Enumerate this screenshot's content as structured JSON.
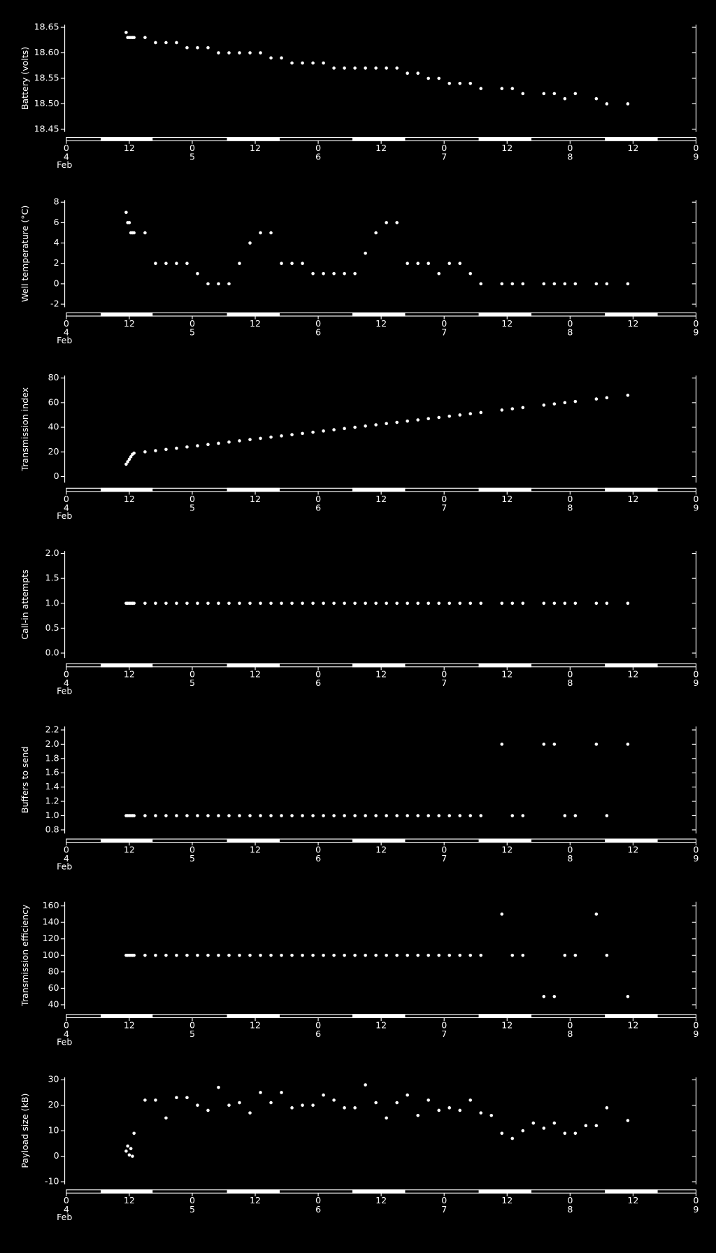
{
  "chart_data": [
    {
      "type": "scatter",
      "y_label": "Battery (volts)",
      "color": "#ffffff",
      "x": [
        11.4,
        11.7,
        12.0,
        12.3,
        12.6,
        12.9,
        15,
        17,
        19,
        21,
        23,
        25,
        27,
        29,
        31,
        33,
        35,
        37,
        39,
        41,
        43,
        45,
        47,
        49,
        51,
        53,
        55,
        57,
        59,
        61,
        63,
        65,
        67,
        69,
        71,
        73,
        75,
        77,
        79,
        83,
        85,
        87,
        91,
        93,
        95,
        97,
        101,
        103,
        107
      ],
      "values": [
        18.64,
        18.63,
        18.63,
        18.63,
        18.63,
        18.63,
        18.63,
        18.62,
        18.62,
        18.62,
        18.61,
        18.61,
        18.61,
        18.6,
        18.6,
        18.6,
        18.6,
        18.6,
        18.59,
        18.59,
        18.58,
        18.58,
        18.58,
        18.58,
        18.57,
        18.57,
        18.57,
        18.57,
        18.57,
        18.57,
        18.57,
        18.56,
        18.56,
        18.55,
        18.55,
        18.54,
        18.54,
        18.54,
        18.53,
        18.53,
        18.53,
        18.52,
        18.52,
        18.52,
        18.51,
        18.52,
        18.51,
        18.5,
        18.5
      ],
      "ylim": [
        18.445,
        18.655
      ],
      "yticks": [
        18.45,
        {
          "value": 18.5,
          "label": "18.50"
        },
        18.55,
        {
          "value": 18.6,
          "label": "18.60"
        },
        18.65
      ],
      "xlim": [
        0,
        120
      ],
      "xticks": [
        0,
        12,
        {
          "value": 24,
          "label": "0"
        },
        {
          "value": 36,
          "label": "12"
        },
        {
          "value": 48,
          "label": "0"
        },
        {
          "value": 60,
          "label": "12"
        },
        {
          "value": 72,
          "label": "0"
        },
        {
          "value": 84,
          "label": "12"
        },
        {
          "value": 96,
          "label": "0"
        },
        {
          "value": 108,
          "label": "12"
        },
        {
          "value": 120,
          "label": "0"
        }
      ],
      "day_labels": [
        {
          "value": 0,
          "label": "4"
        },
        {
          "value": 24,
          "label": "5"
        },
        {
          "value": 48,
          "label": "6"
        },
        {
          "value": 72,
          "label": "7"
        },
        {
          "value": 96,
          "label": "8"
        },
        {
          "value": 120,
          "label": "9"
        }
      ],
      "month_label": "Feb"
    },
    {
      "type": "scatter",
      "y_label": "Well temperature (°C)",
      "color": "#ffffff",
      "x": [
        11.4,
        11.7,
        12.0,
        12.3,
        12.6,
        12.9,
        15,
        17,
        19,
        21,
        23,
        25,
        27,
        29,
        31,
        33,
        35,
        37,
        39,
        41,
        43,
        45,
        47,
        49,
        51,
        53,
        55,
        57,
        59,
        61,
        63,
        65,
        67,
        69,
        71,
        73,
        75,
        77,
        79,
        83,
        85,
        87,
        91,
        93,
        95,
        97,
        101,
        103,
        107
      ],
      "values": [
        7,
        6,
        6,
        5,
        5,
        5,
        5,
        2,
        2,
        2,
        2,
        1,
        0,
        0,
        0,
        2,
        4,
        5,
        5,
        2,
        2,
        2,
        1,
        1,
        1,
        1,
        1,
        3,
        5,
        6,
        6,
        2,
        2,
        2,
        1,
        2,
        2,
        1,
        0,
        0,
        0,
        0,
        0,
        0,
        0,
        0,
        0,
        0,
        0
      ],
      "ylim": [
        -2.3,
        8.2
      ],
      "yticks": [
        -2,
        0,
        2,
        4,
        6,
        8
      ],
      "xlim": [
        0,
        120
      ],
      "xticks": [
        0,
        12,
        {
          "value": 24,
          "label": "0"
        },
        {
          "value": 36,
          "label": "12"
        },
        {
          "value": 48,
          "label": "0"
        },
        {
          "value": 60,
          "label": "12"
        },
        {
          "value": 72,
          "label": "0"
        },
        {
          "value": 84,
          "label": "12"
        },
        {
          "value": 96,
          "label": "0"
        },
        {
          "value": 108,
          "label": "12"
        },
        {
          "value": 120,
          "label": "0"
        }
      ],
      "day_labels": [
        {
          "value": 0,
          "label": "4"
        },
        {
          "value": 24,
          "label": "5"
        },
        {
          "value": 48,
          "label": "6"
        },
        {
          "value": 72,
          "label": "7"
        },
        {
          "value": 96,
          "label": "8"
        },
        {
          "value": 120,
          "label": "9"
        }
      ],
      "month_label": "Feb"
    },
    {
      "type": "scatter",
      "y_label": "Transmission index",
      "color": "#ffffff",
      "x": [
        11.4,
        11.7,
        12.0,
        12.3,
        12.6,
        12.9,
        15,
        17,
        19,
        21,
        23,
        25,
        27,
        29,
        31,
        33,
        35,
        37,
        39,
        41,
        43,
        45,
        47,
        49,
        51,
        53,
        55,
        57,
        59,
        61,
        63,
        65,
        67,
        69,
        71,
        73,
        75,
        77,
        79,
        83,
        85,
        87,
        91,
        93,
        95,
        97,
        101,
        103,
        107
      ],
      "values": [
        10,
        12,
        14,
        16,
        18,
        19,
        20,
        21,
        22,
        23,
        24,
        25,
        26,
        27,
        28,
        29,
        30,
        31,
        32,
        33,
        34,
        35,
        36,
        37,
        38,
        39,
        40,
        41,
        42,
        43,
        44,
        45,
        46,
        47,
        48,
        49,
        50,
        51,
        52,
        54,
        55,
        56,
        58,
        59,
        60,
        61,
        63,
        64,
        66
      ],
      "ylim": [
        -5,
        82
      ],
      "yticks": [
        0,
        20,
        40,
        60,
        80
      ],
      "xlim": [
        0,
        120
      ],
      "xticks": [
        0,
        12,
        {
          "value": 24,
          "label": "0"
        },
        {
          "value": 36,
          "label": "12"
        },
        {
          "value": 48,
          "label": "0"
        },
        {
          "value": 60,
          "label": "12"
        },
        {
          "value": 72,
          "label": "0"
        },
        {
          "value": 84,
          "label": "12"
        },
        {
          "value": 96,
          "label": "0"
        },
        {
          "value": 108,
          "label": "12"
        },
        {
          "value": 120,
          "label": "0"
        }
      ],
      "day_labels": [
        {
          "value": 0,
          "label": "4"
        },
        {
          "value": 24,
          "label": "5"
        },
        {
          "value": 48,
          "label": "6"
        },
        {
          "value": 72,
          "label": "7"
        },
        {
          "value": 96,
          "label": "8"
        },
        {
          "value": 120,
          "label": "9"
        }
      ],
      "month_label": "Feb"
    },
    {
      "type": "scatter",
      "y_label": "Call-in attempts",
      "color": "#ffffff",
      "x": [
        11.4,
        11.7,
        12.0,
        12.3,
        12.6,
        12.9,
        15,
        17,
        19,
        21,
        23,
        25,
        27,
        29,
        31,
        33,
        35,
        37,
        39,
        41,
        43,
        45,
        47,
        49,
        51,
        53,
        55,
        57,
        59,
        61,
        63,
        65,
        67,
        69,
        71,
        73,
        75,
        77,
        79,
        83,
        85,
        87,
        91,
        93,
        95,
        97,
        101,
        103,
        107
      ],
      "values": [
        1,
        1,
        1,
        1,
        1,
        1,
        1,
        1,
        1,
        1,
        1,
        1,
        1,
        1,
        1,
        1,
        1,
        1,
        1,
        1,
        1,
        1,
        1,
        1,
        1,
        1,
        1,
        1,
        1,
        1,
        1,
        1,
        1,
        1,
        1,
        1,
        1,
        1,
        1,
        1,
        1,
        1,
        1,
        1,
        1,
        1,
        1,
        1,
        1
      ],
      "ylim": [
        -0.1,
        2.05
      ],
      "yticks": [
        {
          "value": 0,
          "label": "0.0"
        },
        0.5,
        {
          "value": 1,
          "label": "1.0"
        },
        1.5,
        {
          "value": 2,
          "label": "2.0"
        }
      ],
      "xlim": [
        0,
        120
      ],
      "xticks": [
        0,
        12,
        {
          "value": 24,
          "label": "0"
        },
        {
          "value": 36,
          "label": "12"
        },
        {
          "value": 48,
          "label": "0"
        },
        {
          "value": 60,
          "label": "12"
        },
        {
          "value": 72,
          "label": "0"
        },
        {
          "value": 84,
          "label": "12"
        },
        {
          "value": 96,
          "label": "0"
        },
        {
          "value": 108,
          "label": "12"
        },
        {
          "value": 120,
          "label": "0"
        }
      ],
      "day_labels": [
        {
          "value": 0,
          "label": "4"
        },
        {
          "value": 24,
          "label": "5"
        },
        {
          "value": 48,
          "label": "6"
        },
        {
          "value": 72,
          "label": "7"
        },
        {
          "value": 96,
          "label": "8"
        },
        {
          "value": 120,
          "label": "9"
        }
      ],
      "month_label": "Feb"
    },
    {
      "type": "scatter",
      "y_label": "Buffers to send",
      "color": "#ffffff",
      "x": [
        11.4,
        11.7,
        12.0,
        12.3,
        12.6,
        12.9,
        15,
        17,
        19,
        21,
        23,
        25,
        27,
        29,
        31,
        33,
        35,
        37,
        39,
        41,
        43,
        45,
        47,
        49,
        51,
        53,
        55,
        57,
        59,
        61,
        63,
        65,
        67,
        69,
        71,
        73,
        75,
        77,
        79,
        83,
        85,
        87,
        91,
        93,
        95,
        97,
        101,
        103,
        107
      ],
      "values": [
        1,
        1,
        1,
        1,
        1,
        1,
        1,
        1,
        1,
        1,
        1,
        1,
        1,
        1,
        1,
        1,
        1,
        1,
        1,
        1,
        1,
        1,
        1,
        1,
        1,
        1,
        1,
        1,
        1,
        1,
        1,
        1,
        1,
        1,
        1,
        1,
        1,
        1,
        1,
        2,
        1,
        1,
        2,
        2,
        1,
        1,
        2,
        1,
        2
      ],
      "ylim": [
        0.75,
        2.25
      ],
      "yticks": [
        0.8,
        {
          "value": 1,
          "label": "1.0"
        },
        1.2,
        1.4,
        1.6,
        1.8,
        {
          "value": 2,
          "label": "2.0"
        },
        2.2
      ],
      "xlim": [
        0,
        120
      ],
      "xticks": [
        0,
        12,
        {
          "value": 24,
          "label": "0"
        },
        {
          "value": 36,
          "label": "12"
        },
        {
          "value": 48,
          "label": "0"
        },
        {
          "value": 60,
          "label": "12"
        },
        {
          "value": 72,
          "label": "0"
        },
        {
          "value": 84,
          "label": "12"
        },
        {
          "value": 96,
          "label": "0"
        },
        {
          "value": 108,
          "label": "12"
        },
        {
          "value": 120,
          "label": "0"
        }
      ],
      "day_labels": [
        {
          "value": 0,
          "label": "4"
        },
        {
          "value": 24,
          "label": "5"
        },
        {
          "value": 48,
          "label": "6"
        },
        {
          "value": 72,
          "label": "7"
        },
        {
          "value": 96,
          "label": "8"
        },
        {
          "value": 120,
          "label": "9"
        }
      ],
      "month_label": "Feb"
    },
    {
      "type": "scatter",
      "y_label": "Transmission efficiency",
      "color": "#ffffff",
      "x": [
        11.4,
        11.7,
        12.0,
        12.3,
        12.6,
        12.9,
        15,
        17,
        19,
        21,
        23,
        25,
        27,
        29,
        31,
        33,
        35,
        37,
        39,
        41,
        43,
        45,
        47,
        49,
        51,
        53,
        55,
        57,
        59,
        61,
        63,
        65,
        67,
        69,
        71,
        73,
        75,
        77,
        79,
        83,
        85,
        87,
        91,
        93,
        95,
        97,
        101,
        103,
        107
      ],
      "values": [
        100,
        100,
        100,
        100,
        100,
        100,
        100,
        100,
        100,
        100,
        100,
        100,
        100,
        100,
        100,
        100,
        100,
        100,
        100,
        100,
        100,
        100,
        100,
        100,
        100,
        100,
        100,
        100,
        100,
        100,
        100,
        100,
        100,
        100,
        100,
        100,
        100,
        100,
        100,
        150,
        100,
        100,
        50,
        50,
        100,
        100,
        150,
        100,
        50
      ],
      "ylim": [
        35,
        165
      ],
      "yticks": [
        40,
        60,
        80,
        100,
        120,
        140,
        160
      ],
      "xlim": [
        0,
        120
      ],
      "xticks": [
        0,
        12,
        {
          "value": 24,
          "label": "0"
        },
        {
          "value": 36,
          "label": "12"
        },
        {
          "value": 48,
          "label": "0"
        },
        {
          "value": 60,
          "label": "12"
        },
        {
          "value": 72,
          "label": "0"
        },
        {
          "value": 84,
          "label": "12"
        },
        {
          "value": 96,
          "label": "0"
        },
        {
          "value": 108,
          "label": "12"
        },
        {
          "value": 120,
          "label": "0"
        }
      ],
      "day_labels": [
        {
          "value": 0,
          "label": "4"
        },
        {
          "value": 24,
          "label": "5"
        },
        {
          "value": 48,
          "label": "6"
        },
        {
          "value": 72,
          "label": "7"
        },
        {
          "value": 96,
          "label": "8"
        },
        {
          "value": 120,
          "label": "9"
        }
      ],
      "month_label": "Feb"
    },
    {
      "type": "scatter",
      "y_label": "Payload size (kB)",
      "color": "#ffffff",
      "x": [
        11.4,
        11.7,
        12.0,
        12.3,
        12.6,
        12.9,
        15,
        17,
        19,
        21,
        23,
        25,
        27,
        29,
        31,
        33,
        35,
        37,
        39,
        41,
        43,
        45,
        47,
        49,
        51,
        53,
        55,
        57,
        59,
        61,
        63,
        65,
        67,
        69,
        71,
        73,
        75,
        77,
        79,
        81,
        83,
        85,
        87,
        89,
        91,
        93,
        95,
        97,
        99,
        101,
        103,
        107
      ],
      "values": [
        2,
        4,
        0.5,
        3,
        0,
        9,
        22,
        22,
        15,
        23,
        23,
        20,
        18,
        27,
        20,
        21,
        17,
        25,
        21,
        25,
        19,
        20,
        20,
        24,
        22,
        19,
        19,
        28,
        21,
        15,
        21,
        24,
        16,
        22,
        18,
        19,
        18,
        22,
        17,
        16,
        9,
        7,
        10,
        13,
        11,
        13,
        9,
        9,
        12,
        12,
        19,
        14
      ],
      "ylim": [
        -11,
        31
      ],
      "yticks": [
        -10,
        0,
        10,
        20,
        30
      ],
      "xlim": [
        0,
        120
      ],
      "xticks": [
        0,
        12,
        {
          "value": 24,
          "label": "0"
        },
        {
          "value": 36,
          "label": "12"
        },
        {
          "value": 48,
          "label": "0"
        },
        {
          "value": 60,
          "label": "12"
        },
        {
          "value": 72,
          "label": "0"
        },
        {
          "value": 84,
          "label": "12"
        },
        {
          "value": 96,
          "label": "0"
        },
        {
          "value": 108,
          "label": "12"
        },
        {
          "value": 120,
          "label": "0"
        }
      ],
      "day_labels": [
        {
          "value": 0,
          "label": "4"
        },
        {
          "value": 24,
          "label": "5"
        },
        {
          "value": 48,
          "label": "6"
        },
        {
          "value": 72,
          "label": "7"
        },
        {
          "value": 96,
          "label": "8"
        },
        {
          "value": 120,
          "label": "9"
        }
      ],
      "month_label": "Feb"
    }
  ]
}
